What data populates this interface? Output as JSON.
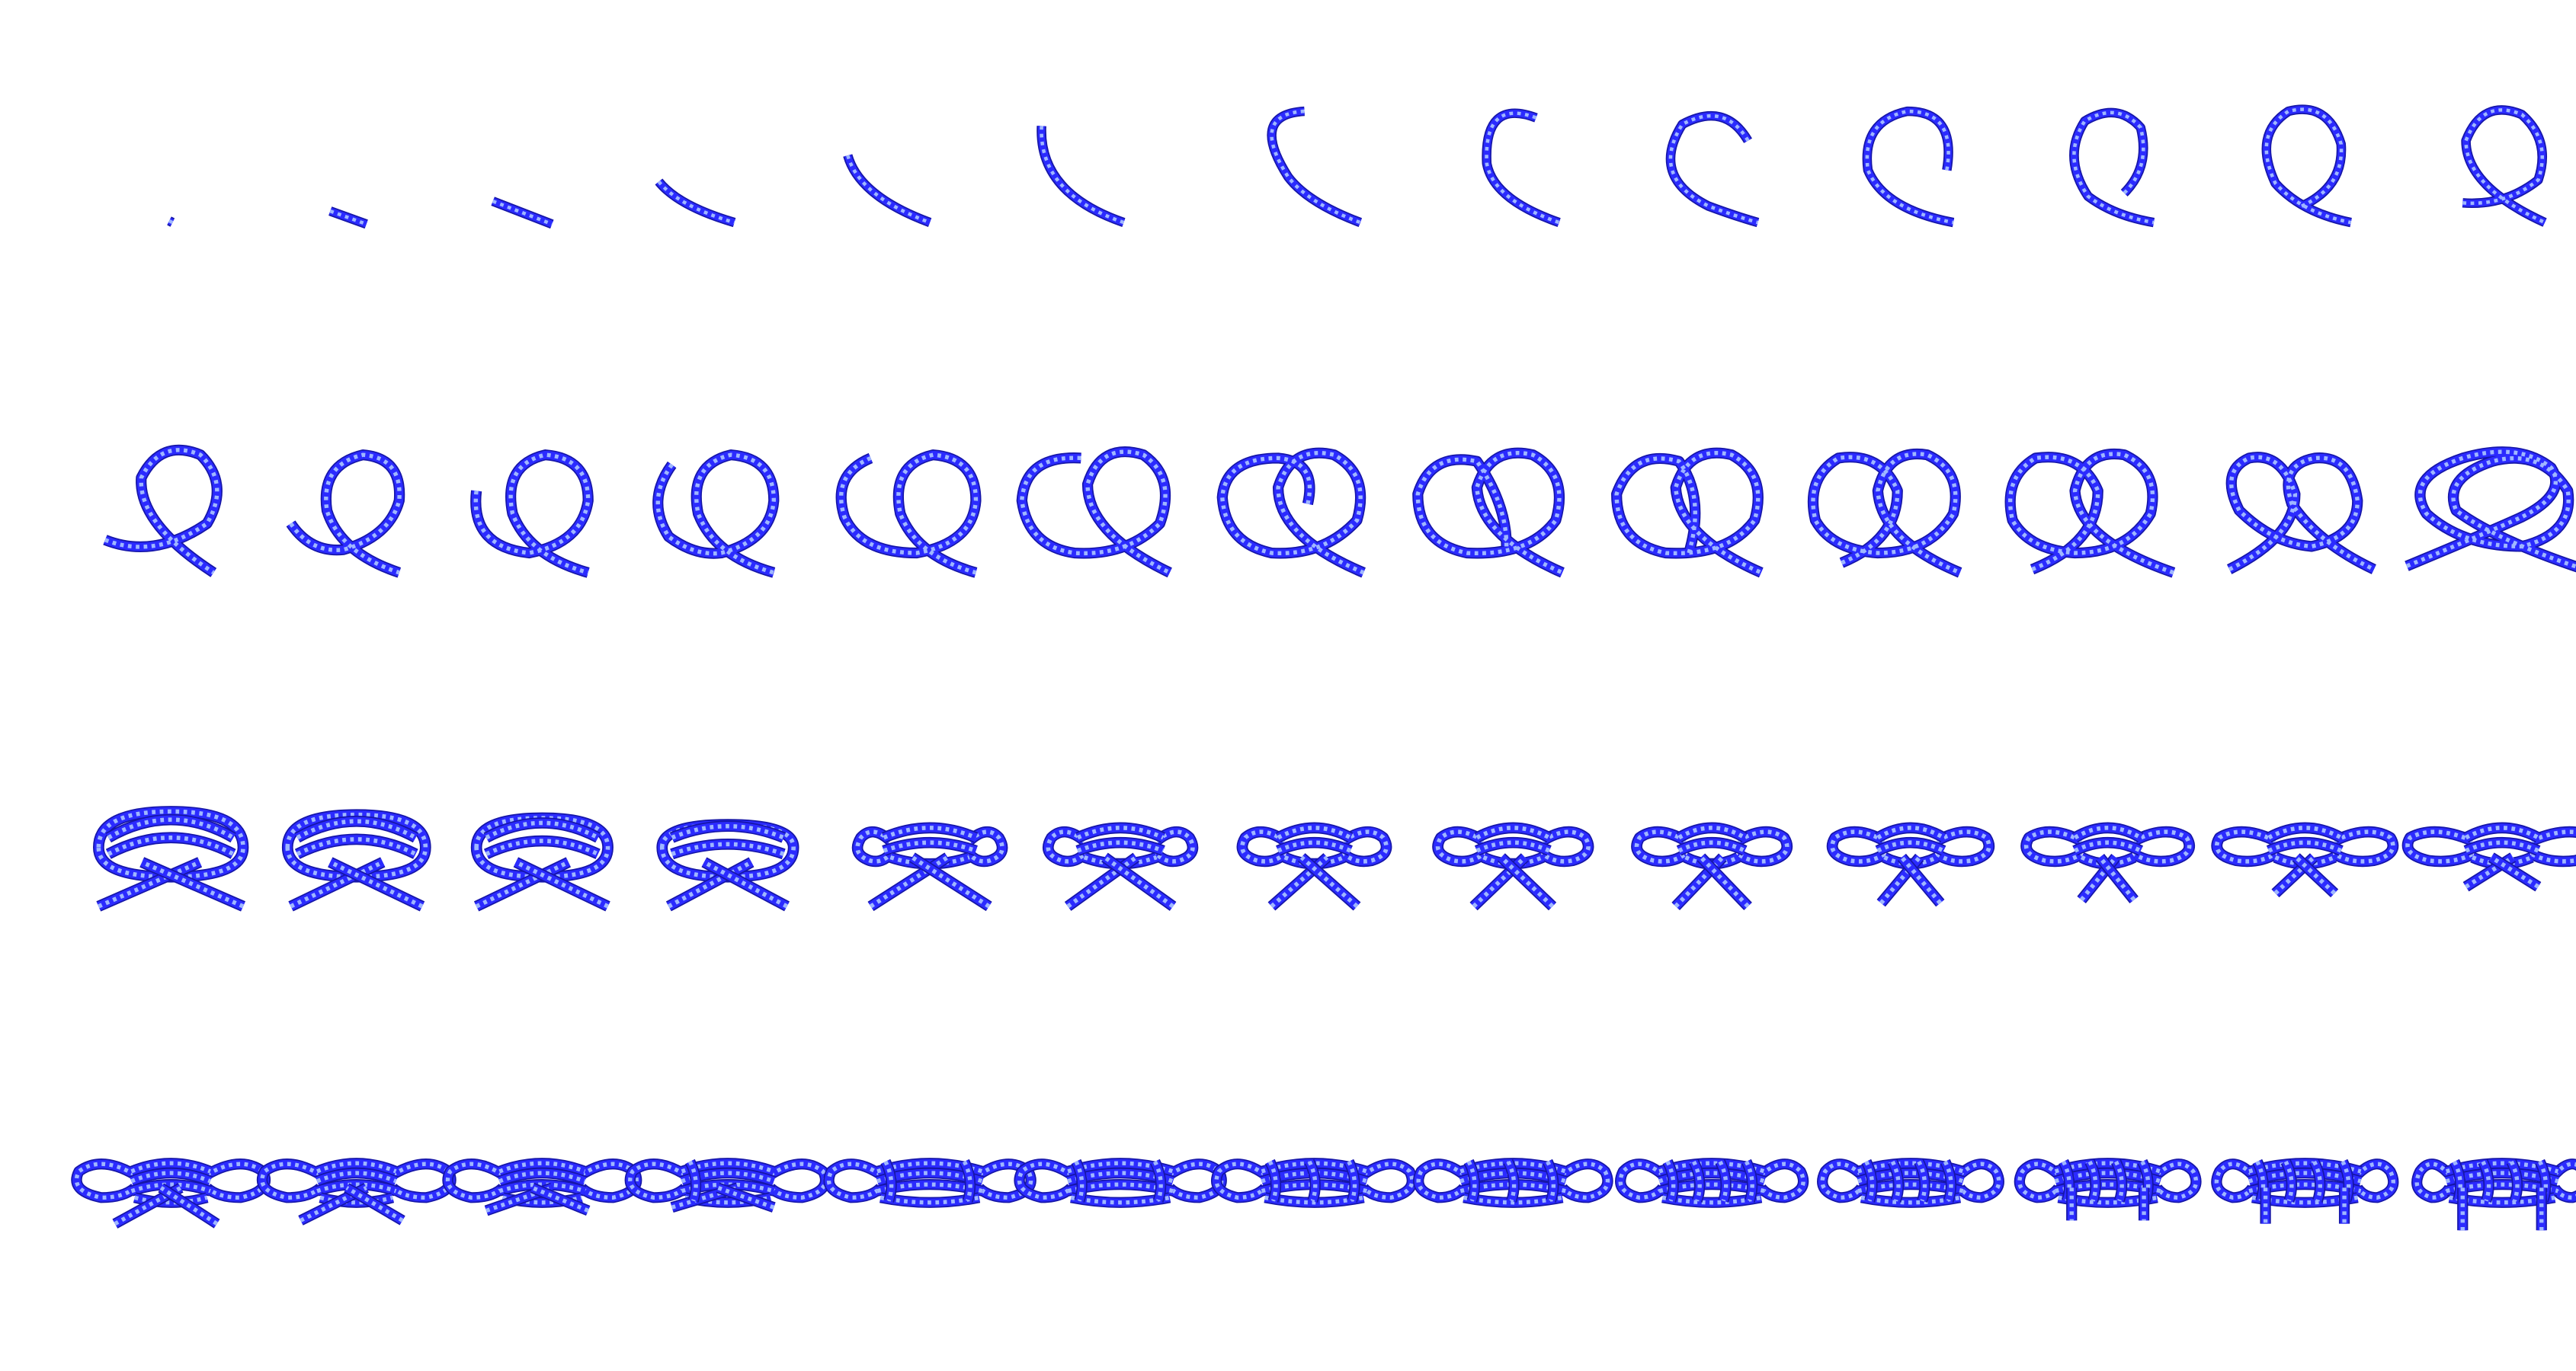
{
  "figure": {
    "description_free": true,
    "rows": 4,
    "columns": 13,
    "frames": 52
  },
  "colors": {
    "background": "#ffffff",
    "rope_base": "#2b2bff",
    "rope_light": "#9fb7ff",
    "rope_dark": "#1616a8",
    "rope_shadow": "#262626"
  }
}
